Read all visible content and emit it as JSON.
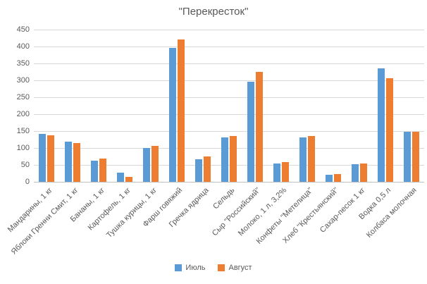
{
  "chart_data": {
    "type": "bar",
    "title": "\"Перекресток\"",
    "categories": [
      "Мандарины, 1 кг",
      "Яблоки Гренни Смит, 1 кг",
      "Бананы, 1 кг",
      "Картофель, 1 кг",
      "Тушка курицы, 1 кг",
      "Фарш говяжий",
      "Гречка ядрица",
      "Сельдь",
      "Сыр \"Российский\"",
      "Молоко, 1 л, 3,2%",
      "Конфеты \"Метелица\"",
      "Хлеб \"Крестьянский\"",
      "Сахар-песок 1 кг",
      "Водка 0,5 л",
      "Колбаса молочная"
    ],
    "series": [
      {
        "name": "Июль",
        "color": "#5B9BD5",
        "values": [
          142,
          118,
          63,
          28,
          100,
          395,
          67,
          132,
          295,
          54,
          131,
          21,
          52,
          336,
          148
        ]
      },
      {
        "name": "Август",
        "color": "#ED7D31",
        "values": [
          138,
          115,
          68,
          15,
          107,
          420,
          75,
          135,
          325,
          59,
          136,
          22,
          55,
          306,
          147
        ]
      }
    ],
    "xlabel": "",
    "ylabel": "",
    "ylim": [
      0,
      450
    ],
    "ytick_step": 50,
    "grid": true,
    "legend_position": "bottom",
    "grid_color": "#D9D9D9",
    "axis_text_color": "#595959",
    "background_color": "#FFFFFF"
  }
}
